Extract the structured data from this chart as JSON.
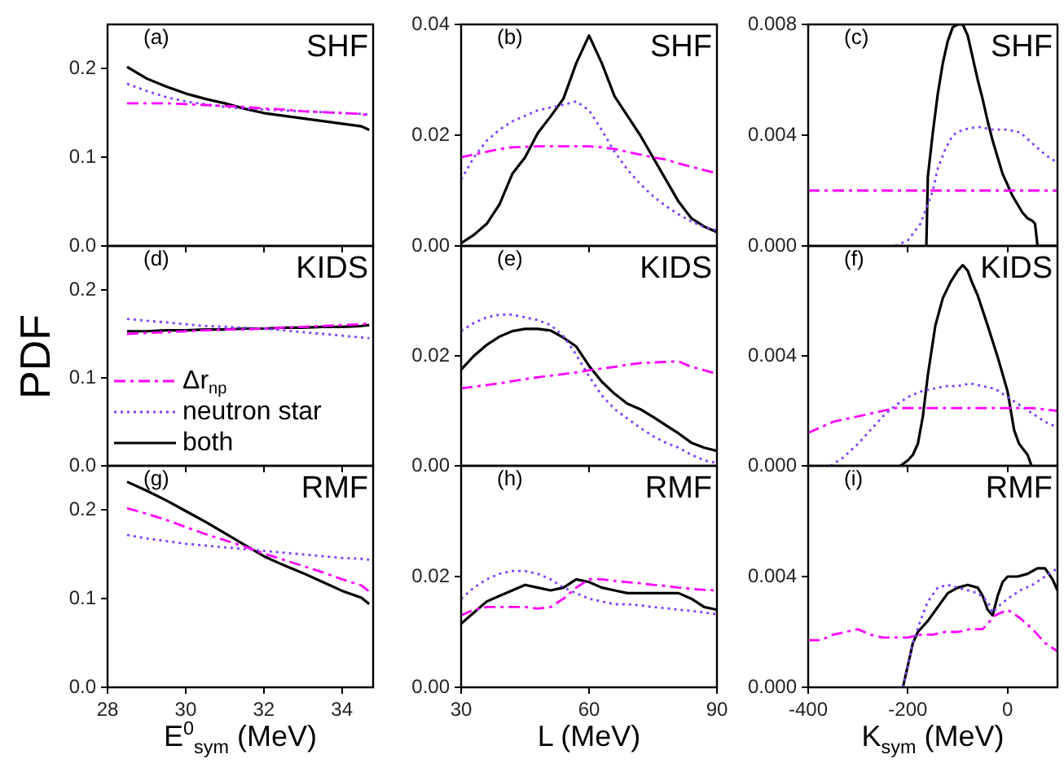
{
  "chart_data": [
    {
      "type": "line",
      "annotations": [
        "(a)",
        "SHF"
      ],
      "x": [
        28.5,
        29,
        29.5,
        30,
        30.5,
        31,
        31.5,
        32,
        32.5,
        33,
        33.5,
        34,
        34.5,
        34.7
      ],
      "xlim": [
        28,
        34.8
      ],
      "xticks": [
        28,
        30,
        32,
        34
      ],
      "ylim": [
        0,
        0.25
      ],
      "yticks": [
        {
          "value": 0,
          "label": "0.0"
        },
        {
          "value": 0.1,
          "label": "0.1"
        },
        {
          "value": 0.2,
          "label": "0.2"
        }
      ],
      "tick_labels": "y",
      "series": [
        {
          "color": "#ff00ff",
          "line_style": "dashed",
          "values": [
            0.161,
            0.161,
            0.161,
            0.16,
            0.159,
            0.158,
            0.157,
            0.155,
            0.154,
            0.152,
            0.151,
            0.15,
            0.149,
            0.147
          ]
        },
        {
          "color": "#8040ff",
          "line_style": "dotted",
          "values": [
            0.183,
            0.175,
            0.168,
            0.163,
            0.16,
            0.157,
            0.155,
            0.154,
            0.153,
            0.152,
            0.151,
            0.15,
            0.149,
            0.148
          ]
        },
        {
          "color": "#000000",
          "line_style": "solid",
          "values": [
            0.202,
            0.189,
            0.18,
            0.172,
            0.166,
            0.161,
            0.155,
            0.15,
            0.147,
            0.144,
            0.141,
            0.138,
            0.135,
            0.131
          ]
        }
      ]
    },
    {
      "type": "line",
      "annotations": [
        "(b)",
        "SHF"
      ],
      "x": [
        30,
        33,
        36,
        39,
        42,
        45,
        48,
        51,
        54,
        57,
        60,
        63,
        66,
        69,
        72,
        75,
        78,
        81,
        84,
        87,
        90
      ],
      "xlim": [
        30,
        90
      ],
      "xticks": [
        30,
        60,
        90
      ],
      "ylim": [
        0,
        0.04
      ],
      "yticks": [
        {
          "value": 0,
          "label": "0.00"
        },
        {
          "value": 0.02,
          "label": "0.02"
        },
        {
          "value": 0.04,
          "label": "0.04"
        }
      ],
      "tick_labels": "y",
      "series": [
        {
          "color": "#ff00ff",
          "line_style": "dashed",
          "values": [
            0.016,
            0.0165,
            0.017,
            0.0175,
            0.0178,
            0.0179,
            0.018,
            0.018,
            0.018,
            0.018,
            0.018,
            0.0178,
            0.0175,
            0.017,
            0.0165,
            0.016,
            0.0156,
            0.0149,
            0.0143,
            0.0137,
            0.0131
          ]
        },
        {
          "color": "#8040ff",
          "line_style": "dotted",
          "values": [
            0.012,
            0.016,
            0.019,
            0.021,
            0.0225,
            0.0235,
            0.0245,
            0.025,
            0.0255,
            0.0261,
            0.0245,
            0.0209,
            0.017,
            0.0138,
            0.0112,
            0.009,
            0.0072,
            0.0057,
            0.0044,
            0.0034,
            0.0028
          ]
        },
        {
          "color": "#000000",
          "line_style": "solid",
          "values": [
            0.0005,
            0.002,
            0.004,
            0.0075,
            0.013,
            0.016,
            0.0204,
            0.0234,
            0.0266,
            0.033,
            0.038,
            0.033,
            0.027,
            0.0235,
            0.02,
            0.016,
            0.012,
            0.008,
            0.005,
            0.0035,
            0.0025
          ]
        }
      ]
    },
    {
      "type": "line",
      "annotations": [
        "(c)",
        "SHF"
      ],
      "xlim": [
        -400,
        100
      ],
      "xticks": [
        -400,
        -200,
        0
      ],
      "ylim": [
        0,
        0.008
      ],
      "yticks": [
        {
          "value": 0,
          "label": "0.000"
        },
        {
          "value": 0.004,
          "label": "0.004"
        },
        {
          "value": 0.008,
          "label": "0.008"
        }
      ],
      "tick_labels": "y",
      "series": [
        {
          "color": "#ff00ff",
          "line_style": "dashed",
          "x": [
            -400,
            -300,
            -200,
            -100,
            0,
            100
          ],
          "values": [
            0.002,
            0.002,
            0.002,
            0.002,
            0.002,
            0.002
          ]
        },
        {
          "color": "#8040ff",
          "line_style": "dotted",
          "x": [
            -225,
            -200,
            -175,
            -160,
            -150,
            -140,
            -125,
            -110,
            -90,
            -60,
            -30,
            0,
            25,
            50,
            75,
            100
          ],
          "values": [
            0,
            0.0002,
            0.0008,
            0.0015,
            0.002,
            0.0028,
            0.0035,
            0.004,
            0.0042,
            0.0043,
            0.0042,
            0.0042,
            0.0041,
            0.0037,
            0.0033,
            0.003
          ]
        },
        {
          "color": "#000000",
          "line_style": "solid",
          "x": [
            -163,
            -160,
            -150,
            -140,
            -130,
            -120,
            -110,
            -100,
            -90,
            -80,
            -70,
            -60,
            -50,
            -40,
            -30,
            -20,
            -10,
            0,
            10,
            20,
            30,
            40,
            50,
            55,
            60,
            100
          ],
          "values": [
            0,
            0.0025,
            0.0041,
            0.0055,
            0.0066,
            0.0074,
            0.0079,
            0.008,
            0.008,
            0.0076,
            0.0068,
            0.006,
            0.0053,
            0.0045,
            0.0038,
            0.0032,
            0.0026,
            0.0022,
            0.0018,
            0.0015,
            0.0012,
            0.001,
            0.0009,
            0.0008,
            0,
            0
          ]
        }
      ]
    },
    {
      "type": "line",
      "annotations": [
        "(d)",
        "KIDS"
      ],
      "ylabel": "PDF",
      "legend": "bottom left",
      "x": [
        28.5,
        29,
        29.5,
        30,
        30.5,
        31,
        31.5,
        32,
        32.5,
        33,
        33.5,
        34,
        34.5,
        34.7
      ],
      "xlim": [
        28,
        34.8
      ],
      "xticks": [
        28,
        30,
        32,
        34
      ],
      "ylim": [
        0,
        0.25
      ],
      "yticks": [
        {
          "value": 0,
          "label": "0.0"
        },
        {
          "value": 0.1,
          "label": "0.1"
        },
        {
          "value": 0.2,
          "label": "0.2"
        }
      ],
      "tick_labels": "y",
      "series": [
        {
          "name": "Δr$_{np}$",
          "color": "#ff00ff",
          "line_style": "dashed",
          "values": [
            0.15,
            0.151,
            0.152,
            0.153,
            0.154,
            0.155,
            0.155,
            0.156,
            0.157,
            0.158,
            0.159,
            0.16,
            0.161,
            0.162
          ]
        },
        {
          "name": "neutron star",
          "color": "#8040ff",
          "line_style": "dotted",
          "values": [
            0.167,
            0.165,
            0.163,
            0.161,
            0.159,
            0.158,
            0.157,
            0.156,
            0.154,
            0.152,
            0.15,
            0.148,
            0.146,
            0.145
          ]
        },
        {
          "name": "both",
          "color": "#000000",
          "line_style": "solid",
          "values": [
            0.153,
            0.153,
            0.154,
            0.154,
            0.155,
            0.155,
            0.156,
            0.156,
            0.157,
            0.157,
            0.158,
            0.158,
            0.159,
            0.16
          ]
        }
      ]
    },
    {
      "type": "line",
      "annotations": [
        "(e)",
        "KIDS"
      ],
      "x": [
        30,
        33,
        36,
        39,
        42,
        45,
        48,
        51,
        54,
        57,
        60,
        63,
        66,
        69,
        72,
        75,
        78,
        81,
        84,
        87,
        90
      ],
      "xlim": [
        30,
        90
      ],
      "xticks": [
        30,
        60,
        90
      ],
      "ylim": [
        0,
        0.04
      ],
      "yticks": [
        {
          "value": 0,
          "label": "0.00"
        },
        {
          "value": 0.02,
          "label": "0.02"
        }
      ],
      "tick_labels": "y",
      "series": [
        {
          "color": "#ff00ff",
          "line_style": "dashed",
          "values": [
            0.0141,
            0.0144,
            0.0147,
            0.015,
            0.0154,
            0.0158,
            0.0161,
            0.0164,
            0.0167,
            0.017,
            0.0174,
            0.0177,
            0.018,
            0.0184,
            0.0187,
            0.0188,
            0.0189,
            0.019,
            0.018,
            0.0174,
            0.0167
          ]
        },
        {
          "color": "#8040ff",
          "line_style": "dotted",
          "values": [
            0.0245,
            0.026,
            0.027,
            0.0275,
            0.0275,
            0.027,
            0.0265,
            0.0256,
            0.0236,
            0.0202,
            0.0163,
            0.0128,
            0.0103,
            0.0086,
            0.0069,
            0.0054,
            0.0042,
            0.0033,
            0.002,
            0.001,
            0.0005
          ]
        },
        {
          "color": "#000000",
          "line_style": "solid",
          "values": [
            0.0175,
            0.02,
            0.022,
            0.0235,
            0.0245,
            0.0249,
            0.0249,
            0.0246,
            0.0233,
            0.0217,
            0.0182,
            0.0153,
            0.0131,
            0.0113,
            0.0103,
            0.0089,
            0.0074,
            0.0059,
            0.0042,
            0.0033,
            0.0027
          ]
        }
      ]
    },
    {
      "type": "line",
      "annotations": [
        "(f)",
        "KIDS"
      ],
      "xlim": [
        -400,
        100
      ],
      "xticks": [
        -400,
        -200,
        0
      ],
      "ylim": [
        0,
        0.008
      ],
      "yticks": [
        {
          "value": 0,
          "label": "0.000"
        },
        {
          "value": 0.004,
          "label": "0.004"
        }
      ],
      "tick_labels": "y",
      "series": [
        {
          "color": "#ff00ff",
          "line_style": "dashed",
          "x": [
            -400,
            -375,
            -350,
            -325,
            -300,
            -275,
            -250,
            -225,
            -200,
            -150,
            -100,
            -50,
            0,
            50,
            100
          ],
          "values": [
            0.0012,
            0.0014,
            0.0016,
            0.0017,
            0.0018,
            0.0019,
            0.002,
            0.0021,
            0.0021,
            0.0021,
            0.0021,
            0.0021,
            0.0021,
            0.0021,
            0.002
          ]
        },
        {
          "color": "#8040ff",
          "line_style": "dotted",
          "x": [
            -355,
            -330,
            -300,
            -275,
            -250,
            -225,
            -200,
            -175,
            -150,
            -125,
            -100,
            -75,
            -50,
            -25,
            0,
            25,
            50,
            75,
            100
          ],
          "values": [
            0,
            0.0003,
            0.0008,
            0.0013,
            0.0018,
            0.0022,
            0.0025,
            0.0027,
            0.0028,
            0.0029,
            0.0029,
            0.003,
            0.0029,
            0.0028,
            0.0025,
            0.0022,
            0.0019,
            0.0016,
            0.0014
          ]
        },
        {
          "color": "#000000",
          "line_style": "solid",
          "x": [
            -215,
            -200,
            -190,
            -180,
            -170,
            -160,
            -145,
            -130,
            -114,
            -100,
            -90,
            -80,
            -72,
            -60,
            -40,
            -19,
            0,
            13,
            23,
            40,
            48
          ],
          "values": [
            0,
            0.0002,
            0.0004,
            0.0008,
            0.0018,
            0.0033,
            0.0051,
            0.0061,
            0.0067,
            0.0071,
            0.0073,
            0.0071,
            0.0067,
            0.0062,
            0.0051,
            0.0039,
            0.0027,
            0.0013,
            0.0008,
            0.0004,
            0
          ]
        }
      ]
    },
    {
      "type": "line",
      "annotations": [
        "(g)",
        "RMF"
      ],
      "xlabel": "E$^{0}$$_{sym}$ (MeV)",
      "x": [
        28.5,
        29,
        29.5,
        30,
        30.5,
        31,
        31.5,
        32,
        32.5,
        33,
        33.5,
        34,
        34.5,
        34.7
      ],
      "xlim": [
        28,
        34.8
      ],
      "xticks": [
        28,
        30,
        32,
        34
      ],
      "ylim": [
        0,
        0.25
      ],
      "yticks": [
        {
          "value": 0,
          "label": "0.0"
        },
        {
          "value": 0.1,
          "label": "0.1"
        },
        {
          "value": 0.2,
          "label": "0.2"
        }
      ],
      "series": [
        {
          "color": "#ff00ff",
          "line_style": "dashed",
          "values": [
            0.202,
            0.196,
            0.189,
            0.181,
            0.173,
            0.166,
            0.159,
            0.151,
            0.144,
            0.137,
            0.13,
            0.122,
            0.115,
            0.108
          ]
        },
        {
          "color": "#8040ff",
          "line_style": "dotted",
          "values": [
            0.172,
            0.168,
            0.165,
            0.162,
            0.16,
            0.158,
            0.156,
            0.154,
            0.152,
            0.15,
            0.148,
            0.146,
            0.145,
            0.144
          ]
        },
        {
          "color": "#000000",
          "line_style": "solid",
          "values": [
            0.232,
            0.222,
            0.211,
            0.199,
            0.187,
            0.174,
            0.161,
            0.148,
            0.138,
            0.129,
            0.119,
            0.109,
            0.101,
            0.094
          ]
        }
      ]
    },
    {
      "type": "line",
      "annotations": [
        "(h)",
        "RMF"
      ],
      "xlabel": "L (MeV)",
      "x": [
        30,
        33,
        36,
        39,
        42,
        45,
        48,
        51,
        54,
        57,
        60,
        63,
        66,
        69,
        72,
        75,
        78,
        81,
        84,
        87,
        90
      ],
      "xlim": [
        30,
        90
      ],
      "xticks": [
        30,
        60,
        90
      ],
      "ylim": [
        0,
        0.04
      ],
      "yticks": [
        {
          "value": 0,
          "label": "0.00"
        },
        {
          "value": 0.02,
          "label": "0.02"
        }
      ],
      "series": [
        {
          "color": "#ff00ff",
          "line_style": "dashed",
          "values": [
            0.013,
            0.014,
            0.0145,
            0.0145,
            0.0145,
            0.0145,
            0.0142,
            0.0145,
            0.016,
            0.018,
            0.0195,
            0.0195,
            0.0192,
            0.019,
            0.0188,
            0.0185,
            0.0183,
            0.018,
            0.0178,
            0.0176,
            0.0175
          ]
        },
        {
          "color": "#8040ff",
          "line_style": "dotted",
          "values": [
            0.016,
            0.018,
            0.0195,
            0.0205,
            0.021,
            0.021,
            0.0205,
            0.0195,
            0.018,
            0.017,
            0.016,
            0.0155,
            0.015,
            0.015,
            0.0148,
            0.0145,
            0.0143,
            0.014,
            0.0138,
            0.0135,
            0.0132
          ]
        },
        {
          "color": "#000000",
          "line_style": "solid",
          "values": [
            0.0115,
            0.0135,
            0.0155,
            0.0165,
            0.0175,
            0.0185,
            0.018,
            0.0175,
            0.018,
            0.0195,
            0.019,
            0.018,
            0.0175,
            0.017,
            0.017,
            0.017,
            0.017,
            0.017,
            0.016,
            0.0145,
            0.014
          ]
        }
      ]
    },
    {
      "type": "line",
      "annotations": [
        "(i)",
        "RMF"
      ],
      "xlabel": "K$_{sym}$ (MeV)",
      "xlim": [
        -400,
        100
      ],
      "xticks": [
        -400,
        -200,
        0
      ],
      "ylim": [
        0,
        0.008
      ],
      "yticks": [
        {
          "value": 0,
          "label": "0.000"
        },
        {
          "value": 0.004,
          "label": "0.004"
        }
      ],
      "series": [
        {
          "color": "#ff00ff",
          "line_style": "dashed",
          "x": [
            -400,
            -375,
            -350,
            -325,
            -300,
            -275,
            -250,
            -225,
            -200,
            -175,
            -150,
            -125,
            -100,
            -75,
            -50,
            -25,
            0,
            25,
            50,
            75,
            100
          ],
          "values": [
            0.0017,
            0.0017,
            0.0019,
            0.002,
            0.0021,
            0.0019,
            0.0018,
            0.0018,
            0.0018,
            0.0019,
            0.0019,
            0.002,
            0.002,
            0.0021,
            0.0021,
            0.0026,
            0.0028,
            0.0025,
            0.0021,
            0.0016,
            0.0013
          ]
        },
        {
          "color": "#8040ff",
          "line_style": "dotted",
          "x": [
            -210,
            -200,
            -190,
            -175,
            -160,
            -140,
            -120,
            -100,
            -80,
            -60,
            -40,
            -30,
            -20,
            0,
            25,
            50,
            75,
            100
          ],
          "values": [
            0,
            0.0008,
            0.0016,
            0.0024,
            0.0031,
            0.0036,
            0.0037,
            0.0036,
            0.0035,
            0.0034,
            0.0031,
            0.0027,
            0.0029,
            0.0032,
            0.0035,
            0.0037,
            0.004,
            0.0043
          ]
        },
        {
          "color": "#000000",
          "line_style": "solid",
          "x": [
            -210,
            -200,
            -190,
            -180,
            -160,
            -140,
            -120,
            -100,
            -80,
            -60,
            -50,
            -40,
            -30,
            -20,
            -10,
            0,
            20,
            40,
            60,
            75,
            90,
            100
          ],
          "values": [
            0,
            0.0008,
            0.0016,
            0.002,
            0.0024,
            0.0029,
            0.0034,
            0.0036,
            0.0037,
            0.0036,
            0.0033,
            0.0028,
            0.0026,
            0.0033,
            0.0038,
            0.004,
            0.004,
            0.0041,
            0.0043,
            0.0043,
            0.0039,
            0.0035
          ]
        }
      ]
    }
  ]
}
